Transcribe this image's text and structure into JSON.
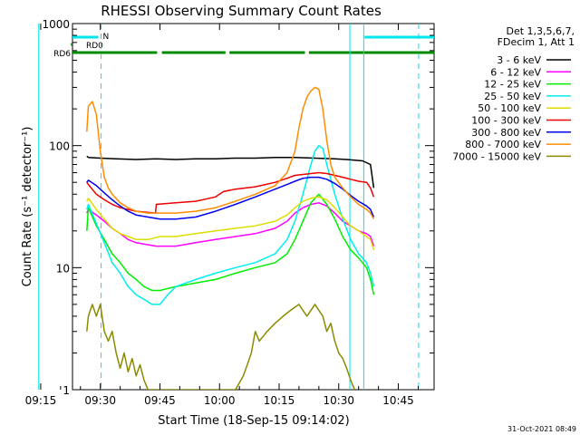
{
  "chart_data": {
    "type": "line",
    "title": "RHESSI Observing Summary Count Rates",
    "xlabel": "Start Time (18-Sep-15 09:14:02)",
    "ylabel": "Count Rate (s⁻¹ detector⁻¹)",
    "yscale": "log",
    "ylim": [
      1,
      1000
    ],
    "xlim_minutes": [
      9.0,
      100.0
    ],
    "x_ticks": [
      {
        "label": "09:15",
        "value": 1
      },
      {
        "label": "09:30",
        "value": 16
      },
      {
        "label": "09:45",
        "value": 31
      },
      {
        "label": "10:00",
        "value": 46
      },
      {
        "label": "10:15",
        "value": 61
      },
      {
        "label": "10:30",
        "value": 76
      },
      {
        "label": "10:45",
        "value": 91
      }
    ],
    "y_ticks": [
      {
        "label": "1",
        "value": 1
      },
      {
        "label": "10",
        "value": 10
      },
      {
        "label": "100",
        "value": 100
      },
      {
        "label": "1000",
        "value": 1000
      }
    ],
    "legend_header": [
      "Det 1,3,5,6,7,",
      "FDecim 1, Att 1"
    ],
    "legend_position": "right",
    "timestamp": "31-Oct-2021 08:49",
    "flags": [
      {
        "label": "N",
        "color": "#00e5ee",
        "segments": [
          [
            -1,
            15.5
          ],
          [
            82.5,
            100
          ]
        ]
      },
      {
        "label": "RD0",
        "color": "#008b00",
        "segments": [
          [
            -1,
            8.6
          ]
        ]
      },
      {
        "label": "RD6",
        "color": "#008b00",
        "segments": [
          [
            -1,
            30.3
          ],
          [
            31.5,
            47.5
          ],
          [
            48.5,
            67.5
          ],
          [
            68.5,
            100
          ]
        ]
      }
    ],
    "boundaries": {
      "data_start": 12.6,
      "data_end": 84.8,
      "solid_lines": [
        0.5,
        78.8,
        82.3
      ],
      "dashed_lines": [
        16.2,
        96.1
      ]
    },
    "series": [
      {
        "name": "3 - 6 keV",
        "color": "#000000",
        "x": [
          12.6,
          13,
          16,
          20,
          25,
          30,
          35,
          40,
          45,
          50,
          55,
          60,
          65,
          70,
          75,
          78,
          80,
          82,
          84,
          84.8
        ],
        "y": [
          82,
          80,
          79,
          78,
          77,
          78,
          77,
          78,
          78,
          79,
          79,
          80,
          80,
          79,
          78,
          77,
          76,
          75,
          70,
          45
        ]
      },
      {
        "name": "6 - 12 keV",
        "color": "#ff00ff",
        "x": [
          12.6,
          13,
          15,
          17,
          19,
          21,
          23,
          25,
          30,
          35,
          40,
          45,
          50,
          55,
          60,
          63,
          65,
          67,
          69,
          71,
          73,
          75,
          77,
          79,
          81,
          83,
          84,
          84.8
        ],
        "y": [
          28,
          30,
          27,
          24,
          21,
          19,
          17,
          16,
          15,
          15,
          16,
          17,
          18,
          19,
          21,
          24,
          28,
          31,
          33,
          34,
          32,
          28,
          24,
          22,
          20,
          19,
          18,
          15
        ]
      },
      {
        "name": "12 - 25 keV",
        "color": "#00ee00",
        "x": [
          12.6,
          13,
          15,
          17,
          19,
          21,
          23,
          25,
          27,
          29,
          31,
          35,
          40,
          45,
          50,
          55,
          60,
          63,
          65,
          67,
          69,
          71,
          73,
          75,
          77,
          79,
          81,
          83,
          84,
          84.8
        ],
        "y": [
          20,
          31,
          22,
          17,
          13,
          11,
          9,
          8,
          7,
          6.5,
          6.5,
          7,
          7.5,
          8,
          9,
          10,
          11,
          13,
          17,
          24,
          34,
          40,
          33,
          25,
          18,
          14,
          12,
          10,
          8,
          6
        ]
      },
      {
        "name": "25 - 50 keV",
        "color": "#00eeee",
        "x": [
          12.6,
          13,
          15,
          17,
          19,
          21,
          23,
          25,
          27,
          29,
          31,
          33,
          35,
          40,
          45,
          50,
          55,
          60,
          63,
          65,
          67,
          69,
          70,
          71,
          72,
          73,
          75,
          77,
          79,
          81,
          83,
          84,
          84.8
        ],
        "y": [
          30,
          33,
          23,
          16,
          11,
          9,
          7,
          6,
          5.5,
          5,
          5,
          6,
          7,
          8,
          9,
          10,
          11,
          13,
          17,
          24,
          40,
          70,
          90,
          100,
          95,
          70,
          40,
          25,
          17,
          13,
          11,
          9,
          7
        ]
      },
      {
        "name": "50 - 100 keV",
        "color": "#dddd00",
        "x": [
          12.6,
          13,
          15,
          17,
          19,
          21,
          23,
          25,
          28,
          31,
          35,
          40,
          45,
          50,
          55,
          60,
          63,
          65,
          67,
          69,
          71,
          73,
          75,
          77,
          79,
          81,
          83,
          84,
          84.8
        ],
        "y": [
          35,
          37,
          30,
          25,
          21,
          19,
          18,
          17,
          17,
          18,
          18,
          19,
          20,
          21,
          22,
          24,
          27,
          31,
          35,
          37,
          38,
          36,
          31,
          26,
          22,
          20,
          18,
          17,
          14
        ]
      },
      {
        "name": "100 - 300 keV",
        "color": "#ee0000",
        "x": [
          12.6,
          13,
          15,
          17,
          19,
          21,
          23,
          25,
          29.9,
          30.1,
          35,
          40,
          45,
          47,
          50,
          55,
          60,
          63,
          65,
          67,
          69,
          71,
          73,
          75,
          77,
          79,
          81,
          83,
          84,
          84.8
        ],
        "y": [
          50,
          48,
          40,
          36,
          33,
          31,
          30,
          29,
          28,
          33,
          34,
          35,
          38,
          42,
          44,
          46,
          50,
          54,
          57,
          58,
          59,
          60,
          59,
          57,
          55,
          53,
          51,
          50,
          45,
          38
        ]
      },
      {
        "name": "300 - 800 keV",
        "color": "#0000ee",
        "x": [
          12.6,
          13,
          15,
          17,
          19,
          21,
          23,
          25,
          28,
          31,
          35,
          40,
          45,
          50,
          55,
          60,
          63,
          65,
          67,
          69,
          71,
          73,
          75,
          77,
          79,
          81,
          83,
          84,
          84.8
        ],
        "y": [
          50,
          52,
          47,
          41,
          36,
          32,
          29,
          27,
          26,
          25,
          25,
          26,
          29,
          33,
          38,
          44,
          48,
          51,
          54,
          55,
          55,
          53,
          49,
          44,
          39,
          35,
          32,
          30,
          26
        ]
      },
      {
        "name": "800 - 7000 keV",
        "color": "#ff8c00",
        "x": [
          12.6,
          13,
          14,
          15,
          16,
          17,
          18,
          19,
          21,
          23,
          25,
          28,
          31,
          35,
          40,
          45,
          50,
          55,
          60,
          63,
          65,
          66,
          67,
          68,
          69,
          70,
          71,
          72,
          73,
          74,
          75,
          77,
          79,
          81,
          83,
          84,
          84.8
        ],
        "y": [
          130,
          210,
          230,
          180,
          90,
          55,
          45,
          40,
          34,
          31,
          29,
          28,
          28,
          28,
          29,
          31,
          35,
          40,
          47,
          60,
          90,
          140,
          200,
          250,
          280,
          300,
          290,
          200,
          110,
          70,
          55,
          45,
          38,
          33,
          30,
          28,
          25
        ]
      },
      {
        "name": "7000 - 15000 keV",
        "color": "#8b8b00",
        "x": [
          12.6,
          13,
          14,
          15,
          16,
          17,
          18,
          19,
          20,
          21,
          22,
          23,
          24,
          25,
          26,
          27,
          28,
          40,
          45,
          50,
          52,
          53,
          54,
          55,
          56,
          58,
          60,
          62,
          64,
          66,
          68,
          70,
          72,
          73,
          74,
          75,
          76,
          77,
          78,
          79,
          80
        ],
        "y": [
          3,
          4,
          5,
          4,
          5,
          3,
          2.5,
          3,
          2,
          1.5,
          2,
          1.4,
          1.8,
          1.3,
          1.6,
          1.2,
          1,
          1,
          1,
          1,
          1.3,
          1.6,
          2,
          3,
          2.5,
          3,
          3.5,
          4,
          4.5,
          5,
          4,
          5,
          4,
          3,
          3.5,
          2.5,
          2,
          1.8,
          1.5,
          1.2,
          1
        ]
      }
    ]
  }
}
